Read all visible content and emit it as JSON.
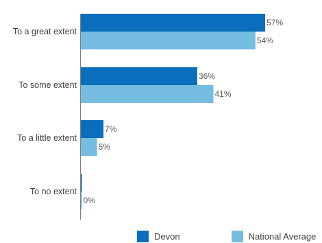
{
  "chart_data": {
    "type": "bar",
    "orientation": "horizontal",
    "categories": [
      "To a great extent",
      "To some extent",
      "To a little extent",
      "To no extent"
    ],
    "series": [
      {
        "name": "Devon",
        "values": [
          57,
          36,
          7,
          0
        ],
        "labels": [
          "57%",
          "36%",
          "7%",
          ""
        ],
        "color": "#0a6ebd"
      },
      {
        "name": "National Average",
        "values": [
          54,
          41,
          5,
          0
        ],
        "labels": [
          "54%",
          "41%",
          "5%",
          "0%"
        ],
        "color": "#74bde0"
      }
    ],
    "xlim": [
      0,
      60
    ],
    "grid": false,
    "legend": "bottom"
  }
}
